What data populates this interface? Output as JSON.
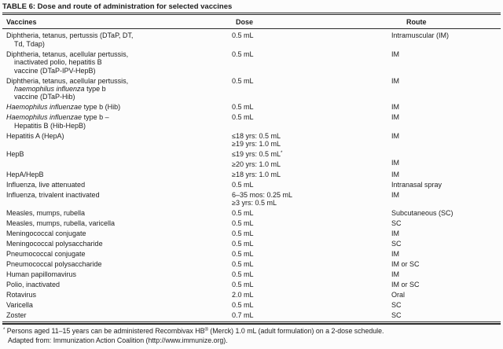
{
  "title": "TABLE 6: Dose and route of administration for selected vaccines",
  "table": {
    "columns": [
      "Vaccines",
      "Dose",
      "Route"
    ],
    "rows": [
      {
        "vaccine": [
          {
            "ind": false,
            "seg": "Diphtheria, tetanus, pertussis (DTaP, DT,"
          },
          {
            "ind": true,
            "seg": "Td, Tdap)"
          }
        ],
        "dose": [
          "0.5 mL"
        ],
        "route": [
          "Intramuscular (IM)"
        ]
      },
      {
        "vaccine": [
          {
            "ind": false,
            "seg": "Diphtheria, tetanus, acellular pertussis,"
          },
          {
            "ind": true,
            "seg": "inactivated polio, hepatitis B"
          },
          {
            "ind": true,
            "seg": "vaccine (DTaP-IPV-HepB)"
          }
        ],
        "dose": [
          "0.5 mL"
        ],
        "route": [
          "IM"
        ]
      },
      {
        "vaccine": [
          {
            "ind": false,
            "seg": "Diphtheria, tetanus, acellular pertussis,"
          },
          {
            "ind": true,
            "seg": [
              {
                "t": "haemophilus influenza",
                "i": true
              },
              {
                "t": " type b"
              }
            ]
          },
          {
            "ind": true,
            "seg": "vaccine (DTaP-Hib)"
          }
        ],
        "dose": [
          "0.5 mL"
        ],
        "route": [
          "IM"
        ]
      },
      {
        "vaccine": [
          {
            "ind": false,
            "seg": [
              {
                "t": "Haemophilus influenzae",
                "i": true
              },
              {
                "t": " type b (Hib)"
              }
            ]
          }
        ],
        "dose": [
          "0.5 mL"
        ],
        "route": [
          "IM"
        ]
      },
      {
        "vaccine": [
          {
            "ind": false,
            "seg": [
              {
                "t": "Haemophilus influenzae",
                "i": true
              },
              {
                "t": " type b –"
              }
            ]
          },
          {
            "ind": true,
            "seg": "Hepatitis B (Hib-HepB)"
          }
        ],
        "dose": [
          "0.5 mL"
        ],
        "route": [
          "IM"
        ]
      },
      {
        "vaccine": [
          {
            "ind": false,
            "seg": "Hepatitis A (HepA)"
          }
        ],
        "dose": [
          "≤18 yrs: 0.5 mL",
          "≥19 yrs: 1.0 mL"
        ],
        "route": [
          "IM"
        ]
      },
      {
        "vaccine": [
          {
            "ind": false,
            "seg": "HepB"
          }
        ],
        "dose": [
          [
            {
              "t": "≤19 yrs: 0.5 mL"
            },
            {
              "t": "*",
              "s": true
            }
          ],
          "≥20 yrs: 1.0 mL"
        ],
        "route": [
          "",
          "IM"
        ]
      },
      {
        "vaccine": [
          {
            "ind": false,
            "seg": "HepA/HepB"
          }
        ],
        "dose": [
          "≥18 yrs: 1.0 mL"
        ],
        "route": [
          "IM"
        ]
      },
      {
        "vaccine": [
          {
            "ind": false,
            "seg": "Influenza, live attenuated"
          }
        ],
        "dose": [
          "0.5 mL"
        ],
        "route": [
          "Intranasal spray"
        ]
      },
      {
        "vaccine": [
          {
            "ind": false,
            "seg": "Influenza, trivalent inactivated"
          }
        ],
        "dose": [
          "6–35 mos: 0.25 mL",
          "≥3 yrs: 0.5 mL"
        ],
        "route": [
          "IM"
        ]
      },
      {
        "vaccine": [
          {
            "ind": false,
            "seg": "Measles, mumps, rubella"
          }
        ],
        "dose": [
          "0.5 mL"
        ],
        "route": [
          "Subcutaneous (SC)"
        ]
      },
      {
        "vaccine": [
          {
            "ind": false,
            "seg": "Measles, mumps, rubella, varicella"
          }
        ],
        "dose": [
          "0.5 mL"
        ],
        "route": [
          "SC"
        ]
      },
      {
        "vaccine": [
          {
            "ind": false,
            "seg": "Meningococcal conjugate"
          }
        ],
        "dose": [
          "0.5 mL"
        ],
        "route": [
          "IM"
        ]
      },
      {
        "vaccine": [
          {
            "ind": false,
            "seg": "Meningococcal polysaccharide"
          }
        ],
        "dose": [
          "0.5 mL"
        ],
        "route": [
          "SC"
        ]
      },
      {
        "vaccine": [
          {
            "ind": false,
            "seg": "Pneumococcal conjugate"
          }
        ],
        "dose": [
          "0.5 mL"
        ],
        "route": [
          "IM"
        ]
      },
      {
        "vaccine": [
          {
            "ind": false,
            "seg": "Pneumococcal polysaccharide"
          }
        ],
        "dose": [
          "0.5 mL"
        ],
        "route": [
          "IM or SC"
        ]
      },
      {
        "vaccine": [
          {
            "ind": false,
            "seg": "Human papillomavirus"
          }
        ],
        "dose": [
          "0.5 mL"
        ],
        "route": [
          "IM"
        ]
      },
      {
        "vaccine": [
          {
            "ind": false,
            "seg": "Polio, inactivated"
          }
        ],
        "dose": [
          "0.5 mL"
        ],
        "route": [
          "IM or SC"
        ]
      },
      {
        "vaccine": [
          {
            "ind": false,
            "seg": "Rotavirus"
          }
        ],
        "dose": [
          "2.0 mL"
        ],
        "route": [
          "Oral"
        ]
      },
      {
        "vaccine": [
          {
            "ind": false,
            "seg": "Varicella"
          }
        ],
        "dose": [
          "0.5 mL"
        ],
        "route": [
          "SC"
        ]
      },
      {
        "vaccine": [
          {
            "ind": false,
            "seg": "Zoster"
          }
        ],
        "dose": [
          "0.7 mL"
        ],
        "route": [
          "SC"
        ]
      }
    ]
  },
  "footnotes": [
    {
      "ind": false,
      "seg": [
        {
          "t": "*",
          "s": true
        },
        {
          "t": " Persons aged 11–15 years can be administered Recombivax HB"
        },
        {
          "t": "®",
          "s": true
        },
        {
          "t": " (Merck) 1.0 mL (adult formulation) on a 2-dose schedule."
        }
      ]
    },
    {
      "ind": true,
      "seg": "Adapted from: Immunization Action Coalition (http://www.immunize.org)."
    }
  ],
  "colors": {
    "background": "#fcfcfc",
    "text": "#1d1d1d",
    "rule": "#2a2a2a"
  }
}
